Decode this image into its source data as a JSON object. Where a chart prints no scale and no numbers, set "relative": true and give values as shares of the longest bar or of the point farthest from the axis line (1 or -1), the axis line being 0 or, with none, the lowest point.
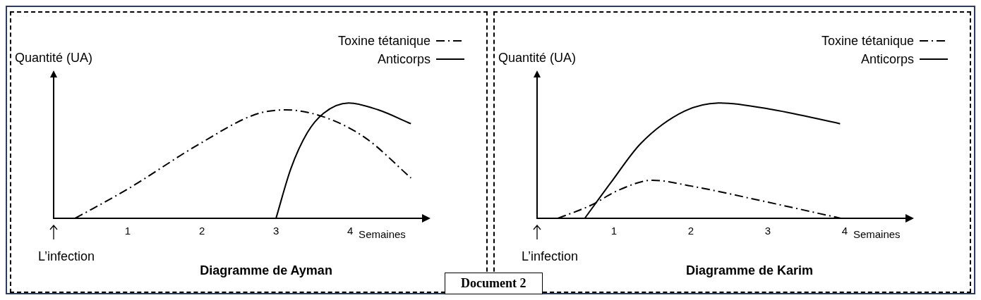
{
  "chart_data": [
    {
      "type": "line",
      "title": "Diagramme de Ayman",
      "ylabel": "Quantité (UA)",
      "xlabel": "Semaines",
      "relative": true,
      "xlim": [
        0,
        4.97
      ],
      "xticks": [
        1,
        2,
        3,
        4
      ],
      "legend": "top right",
      "grid": false,
      "marker": "none",
      "annotations": [
        "L’infection"
      ],
      "series": [
        {
          "name": "Toxine tétanique",
          "color": "#000000",
          "line_style": "dashed",
          "x": [
            0.29,
            0.99,
            1.98,
            2.72,
            3.13,
            3.64,
            4.2,
            4.82
          ],
          "values": [
            0,
            0.25,
            0.65,
            0.9,
            0.94,
            0.88,
            0.7,
            0.35
          ]
        },
        {
          "name": "Anticorps",
          "color": "#000000",
          "line_style": "solid",
          "x": [
            3.0,
            3.2,
            3.42,
            3.64,
            3.98,
            4.38,
            4.82
          ],
          "values": [
            0,
            0.43,
            0.74,
            0.91,
            1,
            0.94,
            0.82
          ]
        }
      ]
    },
    {
      "type": "line",
      "title": "Diagramme de Karim",
      "ylabel": "Quantité (UA)",
      "xlabel": "Semaines",
      "relative": true,
      "xlim": [
        0,
        4.79
      ],
      "xticks": [
        1,
        2,
        3,
        4
      ],
      "legend": "top right",
      "grid": false,
      "marker": "none",
      "annotations": [
        "L’infection",
        "Document 2"
      ],
      "series": [
        {
          "name": "Toxine tétanique",
          "color": "#000000",
          "line_style": "dashed",
          "x": [
            0.27,
            0.69,
            1.08,
            1.5,
            2.0,
            3.0,
            3.95
          ],
          "values": [
            0,
            0.11,
            0.25,
            0.33,
            0.28,
            0.14,
            0
          ]
        },
        {
          "name": "Anticorps",
          "color": "#000000",
          "line_style": "solid",
          "x": [
            0.62,
            0.96,
            1.35,
            1.92,
            2.38,
            3.08,
            3.94
          ],
          "values": [
            0,
            0.31,
            0.65,
            0.93,
            1,
            0.94,
            0.82
          ]
        }
      ]
    }
  ]
}
